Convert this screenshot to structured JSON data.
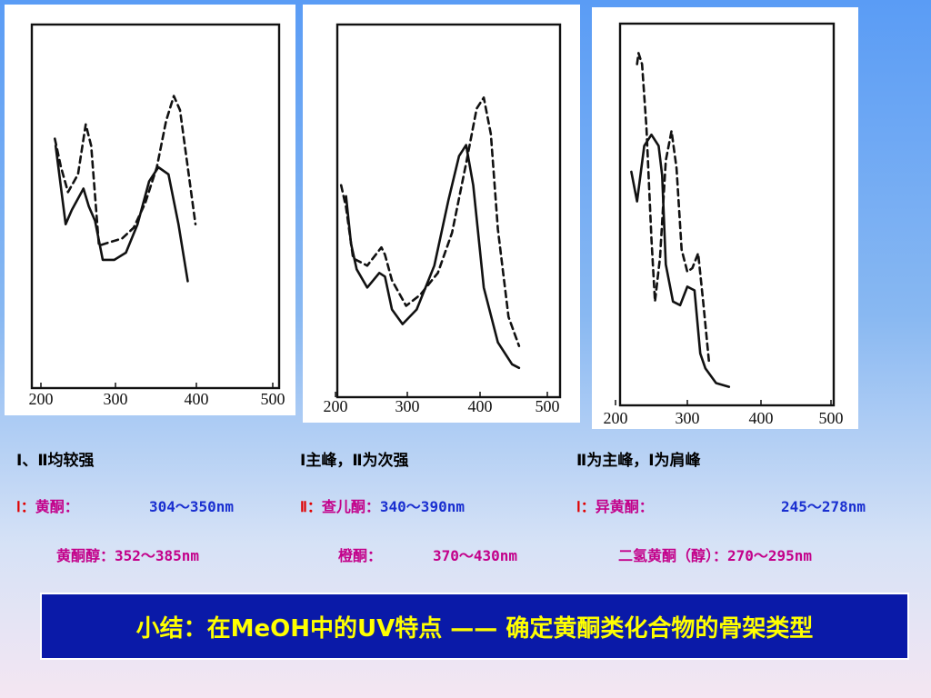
{
  "chart_data": [
    {
      "type": "line",
      "x_ticks": [
        "200",
        "300",
        "400",
        "500"
      ],
      "xlim": [
        200,
        500
      ],
      "series": [
        {
          "style": "solid",
          "x": [
            219,
            232,
            240,
            255,
            262,
            270,
            280,
            295,
            310,
            325,
            340,
            352,
            365,
            378,
            390
          ],
          "y": [
            0.68,
            0.46,
            0.5,
            0.56,
            0.51,
            0.47,
            0.36,
            0.36,
            0.38,
            0.46,
            0.58,
            0.62,
            0.6,
            0.46,
            0.3
          ]
        },
        {
          "style": "dashed",
          "x": [
            218,
            226,
            235,
            248,
            258,
            265,
            275,
            290,
            305,
            320,
            335,
            350,
            362,
            372,
            380,
            390,
            400
          ],
          "y": [
            0.7,
            0.62,
            0.55,
            0.6,
            0.74,
            0.68,
            0.4,
            0.41,
            0.42,
            0.45,
            0.52,
            0.62,
            0.75,
            0.82,
            0.78,
            0.62,
            0.46
          ]
        }
      ]
    },
    {
      "type": "line",
      "x_ticks": [
        "200",
        "300",
        "400",
        "500"
      ],
      "xlim": [
        200,
        500
      ],
      "series": [
        {
          "style": "solid",
          "x": [
            215,
            222,
            230,
            245,
            262,
            270,
            280,
            295,
            315,
            340,
            360,
            375,
            385,
            395,
            410,
            430,
            450,
            460
          ],
          "y": [
            0.55,
            0.42,
            0.35,
            0.3,
            0.34,
            0.33,
            0.24,
            0.2,
            0.24,
            0.36,
            0.54,
            0.66,
            0.69,
            0.58,
            0.3,
            0.15,
            0.09,
            0.08
          ]
        },
        {
          "style": "dashed",
          "x": [
            208,
            215,
            225,
            245,
            265,
            270,
            280,
            300,
            320,
            345,
            365,
            385,
            400,
            410,
            420,
            430,
            445,
            460
          ],
          "y": [
            0.58,
            0.52,
            0.38,
            0.36,
            0.41,
            0.39,
            0.32,
            0.25,
            0.28,
            0.34,
            0.45,
            0.64,
            0.79,
            0.82,
            0.72,
            0.46,
            0.22,
            0.14
          ]
        }
      ]
    },
    {
      "type": "line",
      "x_ticks": [
        "200",
        "300",
        "400",
        "500"
      ],
      "xlim": [
        200,
        500
      ],
      "series": [
        {
          "style": "solid",
          "x": [
            222,
            230,
            240,
            250,
            260,
            265,
            270,
            280,
            290,
            300,
            310,
            318,
            325,
            340,
            358
          ],
          "y": [
            0.63,
            0.55,
            0.7,
            0.73,
            0.7,
            0.62,
            0.38,
            0.28,
            0.27,
            0.32,
            0.31,
            0.14,
            0.1,
            0.06,
            0.05
          ]
        },
        {
          "style": "dashed",
          "x": [
            230,
            232,
            237,
            243,
            250,
            255,
            262,
            270,
            278,
            285,
            292,
            300,
            307,
            315,
            322,
            330
          ],
          "y": [
            0.92,
            0.95,
            0.92,
            0.75,
            0.45,
            0.28,
            0.4,
            0.66,
            0.74,
            0.64,
            0.42,
            0.36,
            0.37,
            0.41,
            0.28,
            0.12
          ]
        }
      ]
    }
  ],
  "columns": [
    {
      "header": "Ⅰ、Ⅱ均较强",
      "line1_label": "Ⅰ：",
      "line1_name": "黄酮：",
      "line1_range": "304～350nm",
      "line2_name": "黄酮醇：352～385nm"
    },
    {
      "header": "Ⅰ主峰，Ⅱ为次强",
      "line1_label": "Ⅱ：",
      "line1_name": "查儿酮：",
      "line1_range": "340～390nm",
      "line2_name": "橙酮：",
      "line2_range": "370～430nm"
    },
    {
      "header": "Ⅱ为主峰，Ⅰ为肩峰",
      "line1_label": "Ⅰ：",
      "line1_name": "异黄酮：",
      "line1_range": "245～278nm",
      "line2_name": "二氢黄酮（醇）：270～295nm"
    }
  ],
  "summary": "小结：在MeOH中的UV特点 —— 确定黄酮类化合物的骨架类型"
}
